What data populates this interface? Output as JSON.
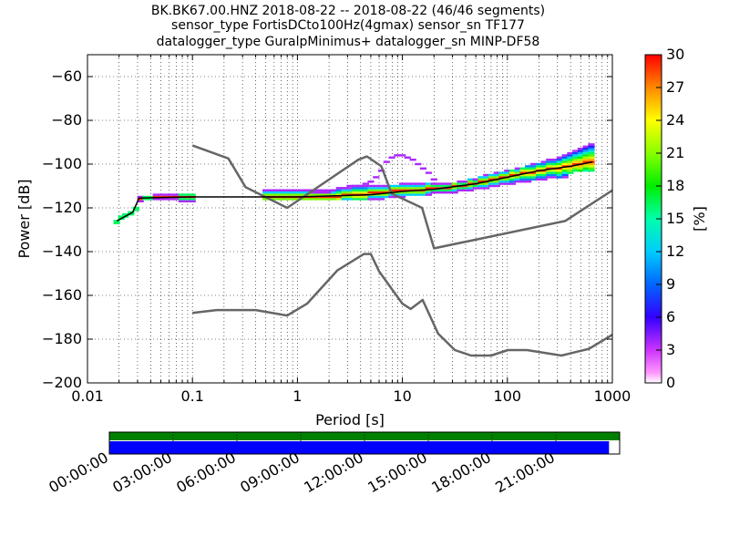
{
  "title": {
    "line1": "BK.BK67.00.HNZ   2018-08-22 -- 2018-08-22  (46/46 segments)",
    "line2": "sensor_type FortisDCto100Hz(4gmax) sensor_sn TF177",
    "line3": "datalogger_type GuralpMinimus+ datalogger_sn MINP-DF58"
  },
  "chart_data": [
    {
      "type": "heatmap",
      "subtype": "probabilistic-power-spectral-density",
      "xlabel": "Period [s]",
      "ylabel": "Power [dB]",
      "xscale": "log",
      "xlim": [
        0.01,
        1000
      ],
      "ylim": [
        -200,
        -50
      ],
      "x_ticks": [
        {
          "value": 0.01,
          "label": "0.01"
        },
        {
          "value": 0.1,
          "label": "0.1"
        },
        {
          "value": 1,
          "label": "1"
        },
        {
          "value": 10,
          "label": "10"
        },
        {
          "value": 100,
          "label": "100"
        },
        {
          "value": 1000,
          "label": "1000"
        }
      ],
      "y_ticks": [
        {
          "value": -60,
          "label": "−60"
        },
        {
          "value": -80,
          "label": "−80"
        },
        {
          "value": -100,
          "label": "−100"
        },
        {
          "value": -120,
          "label": "−120"
        },
        {
          "value": -140,
          "label": "−140"
        },
        {
          "value": -160,
          "label": "−160"
        },
        {
          "value": -180,
          "label": "−180"
        },
        {
          "value": -200,
          "label": "−200"
        }
      ],
      "grid": "dotted (minor log x, major y)",
      "colorbar": {
        "label": "[%]",
        "range": [
          0,
          30
        ],
        "ticks": [
          "0",
          "3",
          "6",
          "9",
          "12",
          "15",
          "18",
          "21",
          "24",
          "27",
          "30"
        ],
        "colormap": "pqlx"
      },
      "series": [
        {
          "role": "high-noise-model",
          "color": "#666666",
          "points": [
            [
              0.1,
              -91.5
            ],
            [
              0.22,
              -97.4
            ],
            [
              0.32,
              -110.5
            ],
            [
              0.8,
              -120
            ],
            [
              3.8,
              -98
            ],
            [
              4.6,
              -96.5
            ],
            [
              6.3,
              -101
            ],
            [
              7.9,
              -113.5
            ],
            [
              15.4,
              -120
            ],
            [
              20,
              -138.5
            ],
            [
              354.8,
              -126
            ],
            [
              1000,
              -112
            ]
          ]
        },
        {
          "role": "low-noise-model",
          "color": "#666666",
          "points": [
            [
              0.1,
              -168
            ],
            [
              0.17,
              -166.7
            ],
            [
              0.4,
              -166.7
            ],
            [
              0.8,
              -169.2
            ],
            [
              1.24,
              -163.7
            ],
            [
              2.4,
              -148.6
            ],
            [
              4.3,
              -141.1
            ],
            [
              5,
              -141.1
            ],
            [
              6,
              -149
            ],
            [
              10,
              -163.8
            ],
            [
              12,
              -166.2
            ],
            [
              15.6,
              -162.1
            ],
            [
              21.9,
              -177.5
            ],
            [
              31.6,
              -185
            ],
            [
              45,
              -187.5
            ],
            [
              70,
              -187.5
            ],
            [
              101,
              -185
            ],
            [
              154,
              -185
            ],
            [
              328,
              -187.5
            ],
            [
              600,
              -184.4
            ],
            [
              1000,
              -178
            ]
          ]
        },
        {
          "role": "mode",
          "color": "#000000",
          "points": [
            [
              0.019,
              -126
            ],
            [
              0.027,
              -122
            ],
            [
              0.031,
              -115.5
            ],
            [
              0.1,
              -115
            ],
            [
              1,
              -115
            ],
            [
              5,
              -114
            ],
            [
              10,
              -112.5
            ],
            [
              20,
              -111.5
            ],
            [
              50,
              -109
            ],
            [
              100,
              -106
            ],
            [
              200,
              -103
            ],
            [
              400,
              -101
            ],
            [
              650,
              -99
            ]
          ]
        }
      ],
      "density_columns": [
        {
          "p": 0.019,
          "lo": -127,
          "hi": -126,
          "mode": -126.5
        },
        {
          "p": 0.021,
          "lo": -125,
          "hi": -124,
          "mode": -124.5
        },
        {
          "p": 0.023,
          "lo": -124,
          "hi": -123,
          "mode": -123.5
        },
        {
          "p": 0.026,
          "lo": -123,
          "hi": -122,
          "mode": -122.5
        },
        {
          "p": 0.029,
          "lo": -121,
          "hi": -120,
          "mode": -120.5
        },
        {
          "p": 0.032,
          "lo": -117,
          "hi": -115,
          "mode": -116
        },
        {
          "p": 0.036,
          "lo": -116,
          "hi": -115,
          "mode": -115.5
        },
        {
          "p": 0.04,
          "lo": -116,
          "hi": -115,
          "mode": -115.5
        },
        {
          "p": 0.045,
          "lo": -116,
          "hi": -114,
          "mode": -115
        },
        {
          "p": 0.05,
          "lo": -116,
          "hi": -114,
          "mode": -115
        },
        {
          "p": 0.056,
          "lo": -116,
          "hi": -114,
          "mode": -115
        },
        {
          "p": 0.063,
          "lo": -116,
          "hi": -114,
          "mode": -115
        },
        {
          "p": 0.071,
          "lo": -116,
          "hi": -114,
          "mode": -115
        },
        {
          "p": 0.079,
          "lo": -117,
          "hi": -114,
          "mode": -115
        },
        {
          "p": 0.089,
          "lo": -117,
          "hi": -114,
          "mode": -115
        },
        {
          "p": 0.1,
          "lo": -117,
          "hi": -114,
          "mode": -115
        },
        {
          "p": 0.5,
          "lo": -116,
          "hi": -112,
          "mode": -115,
          "outlier": -112
        },
        {
          "p": 0.56,
          "lo": -116,
          "hi": -112,
          "mode": -115,
          "outlier": -112
        },
        {
          "p": 0.63,
          "lo": -116,
          "hi": -112,
          "mode": -115,
          "outlier": -112
        },
        {
          "p": 0.71,
          "lo": -116,
          "hi": -112,
          "mode": -115,
          "outlier": -112
        },
        {
          "p": 0.79,
          "lo": -116,
          "hi": -112,
          "mode": -115,
          "outlier": -112
        },
        {
          "p": 0.89,
          "lo": -116,
          "hi": -112,
          "mode": -115,
          "outlier": -112
        },
        {
          "p": 1.0,
          "lo": -116,
          "hi": -112,
          "mode": -115,
          "outlier": -112
        },
        {
          "p": 1.12,
          "lo": -116,
          "hi": -112,
          "mode": -115,
          "outlier": -112
        },
        {
          "p": 1.26,
          "lo": -116,
          "hi": -112,
          "mode": -115,
          "outlier": -112
        },
        {
          "p": 1.41,
          "lo": -116,
          "hi": -112,
          "mode": -115,
          "outlier": -113
        },
        {
          "p": 1.58,
          "lo": -116,
          "hi": -112,
          "mode": -115,
          "outlier": -113
        },
        {
          "p": 1.78,
          "lo": -116,
          "hi": -112,
          "mode": -115,
          "outlier": -113
        },
        {
          "p": 2.0,
          "lo": -116,
          "hi": -112,
          "mode": -115,
          "outlier": -113
        },
        {
          "p": 2.24,
          "lo": -116,
          "hi": -112,
          "mode": -115,
          "outlier": -112
        },
        {
          "p": 2.51,
          "lo": -116,
          "hi": -111,
          "mode": -115,
          "outlier": -111
        },
        {
          "p": 2.82,
          "lo": -116,
          "hi": -111,
          "mode": -114,
          "outlier": -111
        },
        {
          "p": 3.16,
          "lo": -116,
          "hi": -111,
          "mode": -114,
          "outlier": -110
        },
        {
          "p": 3.55,
          "lo": -116,
          "hi": -110,
          "mode": -114,
          "outlier": -110
        },
        {
          "p": 3.98,
          "lo": -116,
          "hi": -110,
          "mode": -114,
          "outlier": -110
        },
        {
          "p": 4.47,
          "lo": -116,
          "hi": -110,
          "mode": -114,
          "outlier": -109
        },
        {
          "p": 5.01,
          "lo": -116,
          "hi": -110,
          "mode": -113,
          "outlier": -108
        },
        {
          "p": 5.62,
          "lo": -116,
          "hi": -110,
          "mode": -113,
          "outlier": -106
        },
        {
          "p": 6.31,
          "lo": -116,
          "hi": -110,
          "mode": -113,
          "outlier": -103
        },
        {
          "p": 7.08,
          "lo": -115,
          "hi": -110,
          "mode": -113,
          "outlier": -99
        },
        {
          "p": 7.94,
          "lo": -115,
          "hi": -110,
          "mode": -112,
          "outlier": -97
        },
        {
          "p": 8.91,
          "lo": -115,
          "hi": -110,
          "mode": -112,
          "outlier": -96
        },
        {
          "p": 10.0,
          "lo": -115,
          "hi": -109,
          "mode": -112,
          "outlier": -96
        },
        {
          "p": 11.2,
          "lo": -114,
          "hi": -109,
          "mode": -112,
          "outlier": -97
        },
        {
          "p": 12.6,
          "lo": -114,
          "hi": -109,
          "mode": -112,
          "outlier": -98
        },
        {
          "p": 14.1,
          "lo": -114,
          "hi": -109,
          "mode": -112,
          "outlier": -100
        },
        {
          "p": 15.8,
          "lo": -114,
          "hi": -109,
          "mode": -112,
          "outlier": -102
        },
        {
          "p": 17.8,
          "lo": -114,
          "hi": -109,
          "mode": -111,
          "outlier": -104
        },
        {
          "p": 20.0,
          "lo": -113,
          "hi": -109,
          "mode": -111,
          "outlier": -107
        },
        {
          "p": 22.4,
          "lo": -113,
          "hi": -109,
          "mode": -111
        },
        {
          "p": 25.1,
          "lo": -113,
          "hi": -109,
          "mode": -111
        },
        {
          "p": 28.2,
          "lo": -113,
          "hi": -109,
          "mode": -111
        },
        {
          "p": 31.6,
          "lo": -113,
          "hi": -109,
          "mode": -110
        },
        {
          "p": 35.5,
          "lo": -112,
          "hi": -108,
          "mode": -110
        },
        {
          "p": 39.8,
          "lo": -112,
          "hi": -108,
          "mode": -110
        },
        {
          "p": 44.7,
          "lo": -112,
          "hi": -107,
          "mode": -109
        },
        {
          "p": 50.1,
          "lo": -111,
          "hi": -107,
          "mode": -109
        },
        {
          "p": 56.2,
          "lo": -111,
          "hi": -106,
          "mode": -108
        },
        {
          "p": 63.1,
          "lo": -111,
          "hi": -105,
          "mode": -108
        },
        {
          "p": 70.8,
          "lo": -110,
          "hi": -105,
          "mode": -107
        },
        {
          "p": 79.4,
          "lo": -110,
          "hi": -104,
          "mode": -107
        },
        {
          "p": 89.1,
          "lo": -109,
          "hi": -104,
          "mode": -106
        },
        {
          "p": 100,
          "lo": -109,
          "hi": -103,
          "mode": -106
        },
        {
          "p": 112,
          "lo": -109,
          "hi": -103,
          "mode": -105
        },
        {
          "p": 126,
          "lo": -108,
          "hi": -102,
          "mode": -105
        },
        {
          "p": 141,
          "lo": -108,
          "hi": -102,
          "mode": -104
        },
        {
          "p": 158,
          "lo": -108,
          "hi": -101,
          "mode": -104
        },
        {
          "p": 178,
          "lo": -107,
          "hi": -100,
          "mode": -104
        },
        {
          "p": 200,
          "lo": -107,
          "hi": -100,
          "mode": -103
        },
        {
          "p": 224,
          "lo": -107,
          "hi": -99,
          "mode": -103
        },
        {
          "p": 251,
          "lo": -106,
          "hi": -98,
          "mode": -102
        },
        {
          "p": 282,
          "lo": -106,
          "hi": -98,
          "mode": -102
        },
        {
          "p": 316,
          "lo": -106,
          "hi": -97,
          "mode": -102
        },
        {
          "p": 355,
          "lo": -106,
          "hi": -96,
          "mode": -101
        },
        {
          "p": 398,
          "lo": -104,
          "hi": -95,
          "mode": -101
        },
        {
          "p": 447,
          "lo": -103,
          "hi": -94,
          "mode": -100
        },
        {
          "p": 501,
          "lo": -103,
          "hi": -93,
          "mode": -100
        },
        {
          "p": 562,
          "lo": -103,
          "hi": -92,
          "mode": -99
        },
        {
          "p": 631,
          "lo": -103,
          "hi": -91,
          "mode": -99
        }
      ]
    },
    {
      "type": "timeline",
      "xlim_hours": [
        0,
        24
      ],
      "tick_labels": [
        "00:00:00",
        "03:00:00",
        "06:00:00",
        "09:00:00",
        "12:00:00",
        "15:00:00",
        "18:00:00",
        "21:00:00"
      ],
      "tick_hours": [
        0,
        3,
        6,
        9,
        12,
        15,
        18,
        21
      ],
      "bars": [
        {
          "role": "data-available",
          "color": "#008000",
          "start_hour": 0,
          "end_hour": 24
        },
        {
          "role": "psd-segments",
          "color": "#0000ff",
          "start_hour": 0,
          "end_hour": 23.5
        }
      ]
    }
  ]
}
